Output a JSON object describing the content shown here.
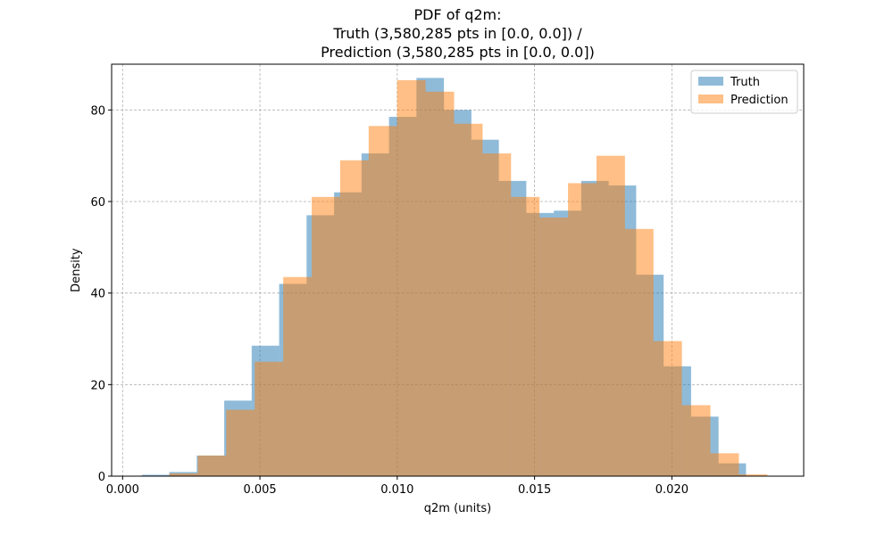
{
  "chart_data": {
    "type": "histogram",
    "title": [
      "PDF of q2m:",
      "Truth (3,580,285 pts in [0.0, 0.0]) /",
      "Prediction (3,580,285 pts in [0.0, 0.0])"
    ],
    "xlabel": "q2m (units)",
    "ylabel": "Density",
    "xlim": [
      -0.0004,
      0.0248
    ],
    "ylim": [
      0,
      90
    ],
    "xticks": [
      0.0,
      0.005,
      0.01,
      0.015,
      0.02
    ],
    "xtick_labels": [
      "0.000",
      "0.005",
      "0.010",
      "0.015",
      "0.020"
    ],
    "yticks": [
      0,
      20,
      40,
      60,
      80
    ],
    "ytick_labels": [
      "0",
      "20",
      "40",
      "60",
      "80"
    ],
    "grid": true,
    "legend_position": "top-right",
    "series": [
      {
        "name": "Truth",
        "color": "#1f77b4",
        "opacity": 0.5,
        "bin_start": 0.0007,
        "bin_width": 0.001,
        "values": [
          0.3,
          0.9,
          4.5,
          16.5,
          28.5,
          42.0,
          57.0,
          62.0,
          70.5,
          78.5,
          87.0,
          80.0,
          73.5,
          64.5,
          57.5,
          58.0,
          64.5,
          63.5,
          44.0,
          24.0,
          13.0,
          2.8
        ]
      },
      {
        "name": "Prediction",
        "color": "#ff7f0e",
        "opacity": 0.5,
        "bin_start": 0.0017,
        "bin_width": 0.001037,
        "values": [
          0.6,
          4.5,
          14.5,
          25.0,
          43.5,
          61.0,
          69.0,
          76.5,
          86.5,
          84.0,
          77.0,
          70.5,
          61.0,
          56.5,
          64.0,
          70.0,
          54.0,
          29.5,
          15.5,
          5.0,
          0.4
        ]
      }
    ]
  }
}
